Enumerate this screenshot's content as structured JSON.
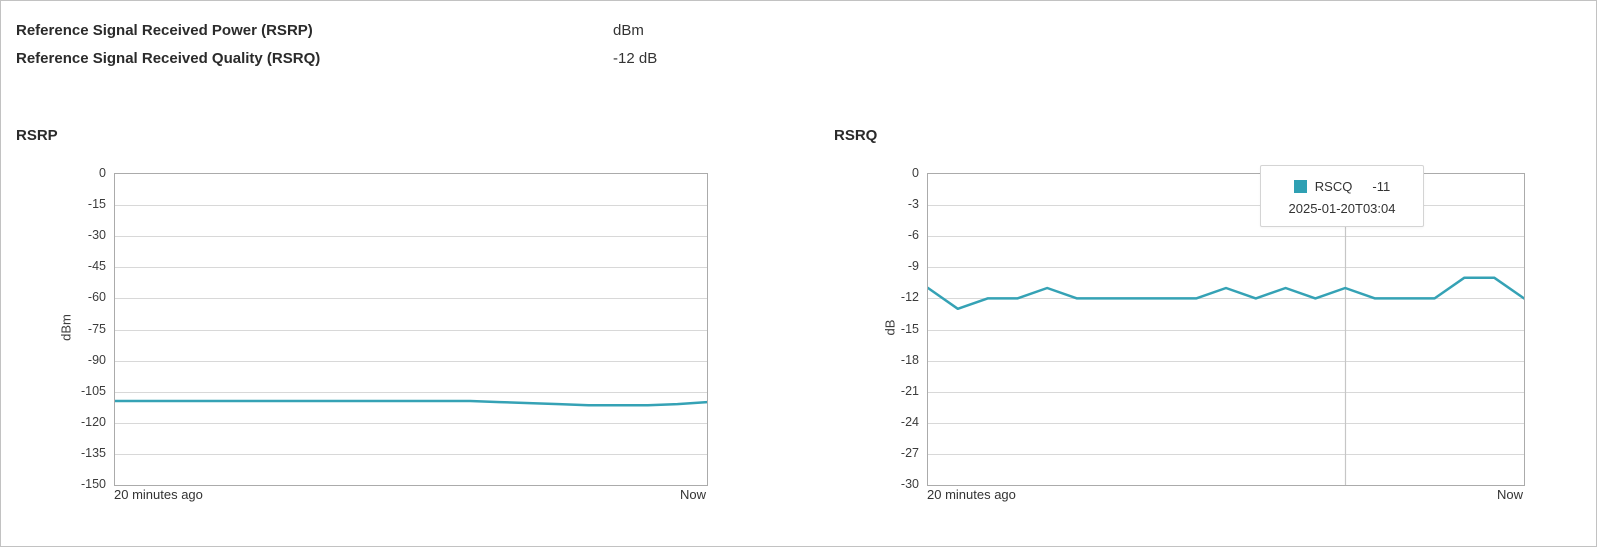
{
  "summary": {
    "rows": [
      {
        "label": "Reference Signal Received Power (RSRP)",
        "value": "dBm"
      },
      {
        "label": "Reference Signal Received Quality (RSRQ)",
        "value": "-12 dB"
      }
    ]
  },
  "chart_data": [
    {
      "type": "line",
      "title": "RSRP",
      "ylabel": "dBm",
      "xlabel_left": "20 minutes ago",
      "xlabel_right": "Now",
      "ylim": [
        -150,
        0
      ],
      "yticks": [
        0,
        -15,
        -30,
        -45,
        -60,
        -75,
        -90,
        -105,
        -120,
        -135,
        -150
      ],
      "grid": "horizontal",
      "legend": "none",
      "x_span": "last 20 minutes",
      "series": [
        {
          "name": "RSRP",
          "color": "#35a2b5",
          "values": [
            -109.5,
            -109.5,
            -109.5,
            -109.5,
            -109.5,
            -109.5,
            -109.5,
            -109.5,
            -109.5,
            -109.5,
            -109.5,
            -109.5,
            -109.5,
            -110,
            -110.5,
            -111,
            -111.5,
            -111.5,
            -111.5,
            -111,
            -110
          ]
        }
      ]
    },
    {
      "type": "line",
      "title": "RSRQ",
      "ylabel": "dB",
      "xlabel_left": "20 minutes ago",
      "xlabel_right": "Now",
      "ylim": [
        -30,
        0
      ],
      "yticks": [
        0,
        -3,
        -6,
        -9,
        -12,
        -15,
        -18,
        -21,
        -24,
        -27,
        -30
      ],
      "grid": "horizontal",
      "legend": "none",
      "x_span": "last 20 minutes",
      "series": [
        {
          "name": "RSCQ",
          "color": "#35a2b5",
          "values": [
            -11,
            -13,
            -12,
            -12,
            -11,
            -12,
            -12,
            -12,
            -12,
            -12,
            -11,
            -12,
            -11,
            -12,
            -11,
            -12,
            -12,
            -12,
            -10,
            -10,
            -12
          ]
        }
      ],
      "hover": {
        "index": 14,
        "label": "RSCQ",
        "value": "-11",
        "timestamp": "2025-01-20T03:04"
      }
    }
  ],
  "colors": {
    "line": "#35a2b5",
    "grid": "#d8d8d8",
    "plot_border": "#ababab",
    "crosshair": "#c6c6c6",
    "page_border": "#c2c2c2",
    "tooltip_swatch": "#2fa0b3"
  }
}
